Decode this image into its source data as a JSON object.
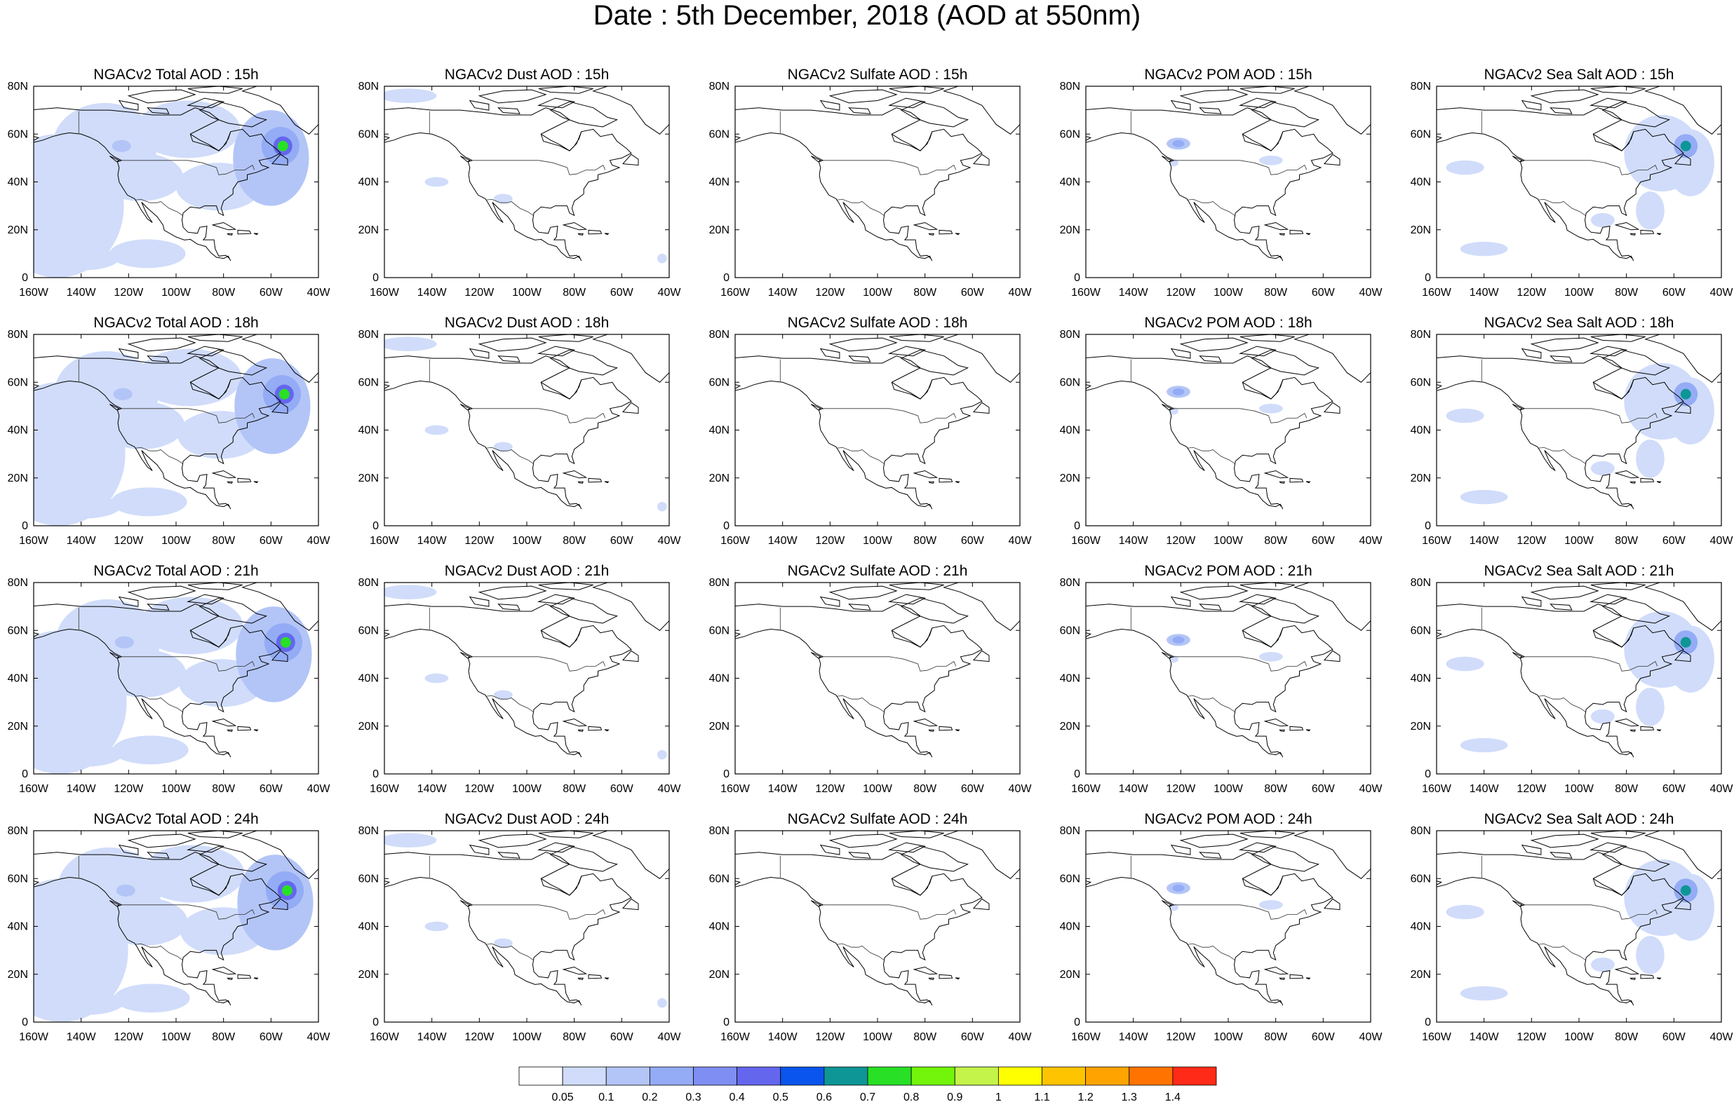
{
  "title": "Date : 5th December, 2018 (AOD at 550nm)",
  "panels": [
    [
      "NGACv2 Total AOD : 15h",
      "NGACv2 Dust AOD : 15h",
      "NGACv2 Sulfate AOD : 15h",
      "NGACv2 POM AOD : 15h",
      "NGACv2 Sea Salt AOD : 15h"
    ],
    [
      "NGACv2 Total AOD : 18h",
      "NGACv2 Dust AOD : 18h",
      "NGACv2 Sulfate AOD : 18h",
      "NGACv2 POM AOD : 18h",
      "NGACv2 Sea Salt AOD : 18h"
    ],
    [
      "NGACv2 Total AOD : 21h",
      "NGACv2 Dust AOD : 21h",
      "NGACv2 Sulfate AOD : 21h",
      "NGACv2 POM AOD : 21h",
      "NGACv2 Sea Salt AOD : 21h"
    ],
    [
      "NGACv2 Total AOD : 24h",
      "NGACv2 Dust AOD : 24h",
      "NGACv2 Sulfate AOD : 24h",
      "NGACv2 POM AOD : 24h",
      "NGACv2 Sea Salt  AOD : 24h"
    ]
  ],
  "map": {
    "lat_ticks": [
      "0",
      "20N",
      "40N",
      "60N",
      "80N"
    ],
    "lon_ticks": [
      "160W",
      "140W",
      "120W",
      "100W",
      "80W",
      "60W",
      "40W"
    ],
    "lat_range": [
      0,
      80
    ],
    "lon_range": [
      -160,
      -40
    ]
  },
  "colorbar": {
    "labels": [
      "0.05",
      "0.1",
      "0.2",
      "0.3",
      "0.4",
      "0.5",
      "0.6",
      "0.7",
      "0.8",
      "0.9",
      "1",
      "1.1",
      "1.2",
      "1.3",
      "1.4"
    ],
    "colors": [
      "#ffffff",
      "#d0dcfa",
      "#b3c5f7",
      "#94acf5",
      "#7f8ef2",
      "#6467ee",
      "#0a55ee",
      "#0e9696",
      "#28e025",
      "#72f40b",
      "#c4f44a",
      "#ffff00",
      "#ffc400",
      "#ffa300",
      "#ff7400",
      "#ff2a17"
    ]
  }
}
